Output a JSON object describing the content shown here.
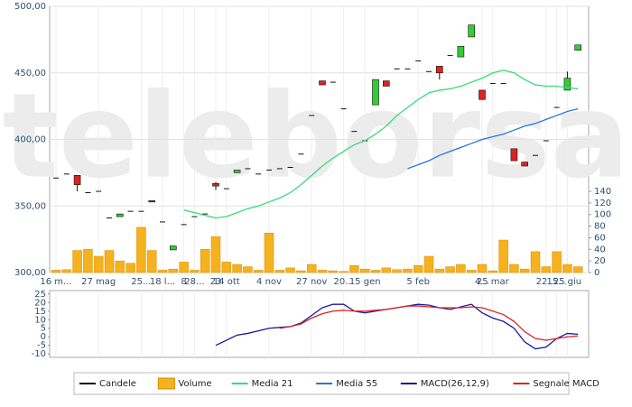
{
  "chart_data": {
    "type": "candlestick",
    "watermark": "teleborsa",
    "categories": [
      "16 m...",
      null,
      null,
      null,
      "27 mag",
      null,
      null,
      null,
      "25...",
      null,
      "18 l...",
      null,
      "8",
      "28...",
      null,
      "23",
      "14 ott",
      null,
      null,
      null,
      "4 nov",
      null,
      null,
      null,
      "27 nov",
      null,
      null,
      "20...",
      null,
      "15 gen",
      null,
      null,
      null,
      null,
      "5 feb",
      null,
      null,
      null,
      null,
      null,
      "4...",
      "25 mar",
      null,
      null,
      null,
      null,
      "22...",
      "15...",
      "25 giu",
      null
    ],
    "ylim": [
      300,
      500
    ],
    "yticks": [
      {
        "value": 300,
        "label": "300,00"
      },
      {
        "value": 350,
        "label": "350,00"
      },
      {
        "value": 400,
        "label": "400,00"
      },
      {
        "value": 450,
        "label": "450,00"
      },
      {
        "value": 500,
        "label": "500,00"
      }
    ],
    "y2lim": [
      0,
      459
    ],
    "y2ticks": [
      0,
      20,
      40,
      60,
      80,
      100,
      120,
      140
    ],
    "macd_ylim": [
      -12,
      27
    ],
    "macd_yticks": [
      25,
      20,
      15,
      10,
      5,
      0,
      -5,
      -10
    ],
    "grid": true,
    "series": [
      {
        "name": "Candele",
        "color": "#111111",
        "up_color": "#33cc33",
        "down_color": "#dd2222",
        "open": [
          371,
          374,
          373,
          360,
          361,
          341,
          342,
          346,
          346,
          354,
          338,
          317,
          336,
          342,
          344,
          367,
          363,
          375,
          378,
          374,
          377,
          378,
          379,
          389,
          418,
          444,
          443,
          423,
          406,
          399,
          426,
          444,
          453,
          453,
          459,
          451,
          455,
          463,
          462,
          477,
          437,
          442,
          442,
          393,
          383,
          388,
          399,
          424,
          437,
          467
        ],
        "high": [
          371,
          374,
          373,
          360,
          361,
          341,
          344,
          346,
          346,
          354,
          338,
          320,
          336,
          342,
          344,
          368,
          363,
          377,
          378,
          374,
          377,
          378,
          379,
          389,
          418,
          444,
          443,
          423,
          406,
          399,
          445,
          444,
          453,
          453,
          459,
          451,
          455,
          463,
          470,
          486,
          437,
          442,
          442,
          393,
          383,
          388,
          399,
          424,
          451,
          471
        ],
        "low": [
          371,
          374,
          361,
          360,
          361,
          341,
          342,
          346,
          346,
          353,
          338,
          317,
          336,
          342,
          344,
          362,
          363,
          375,
          378,
          374,
          377,
          378,
          379,
          389,
          418,
          441,
          443,
          423,
          406,
          399,
          426,
          440,
          453,
          453,
          459,
          451,
          445,
          463,
          462,
          477,
          430,
          442,
          442,
          384,
          380,
          388,
          399,
          424,
          437,
          467
        ],
        "close": [
          371,
          374,
          366,
          360,
          361,
          341,
          344,
          346,
          346,
          353,
          338,
          320,
          336,
          342,
          344,
          365,
          363,
          377,
          378,
          374,
          377,
          378,
          379,
          389,
          418,
          441,
          443,
          423,
          406,
          399,
          445,
          440,
          453,
          453,
          459,
          451,
          450,
          463,
          470,
          486,
          430,
          442,
          442,
          384,
          380,
          388,
          399,
          424,
          446,
          471
        ]
      },
      {
        "name": "Volume",
        "color": "#f5b21e",
        "axis": "y2",
        "values": [
          4,
          5,
          38,
          40,
          28,
          38,
          20,
          16,
          78,
          38,
          4,
          6,
          18,
          4,
          40,
          62,
          18,
          14,
          10,
          4,
          68,
          4,
          8,
          3,
          14,
          4,
          3,
          2,
          12,
          6,
          4,
          8,
          5,
          6,
          12,
          28,
          6,
          10,
          14,
          4,
          14,
          3,
          56,
          14,
          6,
          36,
          10,
          36,
          14,
          10
        ]
      },
      {
        "name": "Media 21",
        "color": "#33dd77",
        "values": [
          null,
          null,
          null,
          null,
          null,
          null,
          null,
          null,
          null,
          null,
          null,
          null,
          347,
          345,
          343,
          341,
          342,
          345,
          348,
          350,
          353,
          356,
          360,
          366,
          373,
          380,
          386,
          391,
          396,
          399,
          404,
          410,
          418,
          424,
          430,
          435,
          437,
          438,
          440,
          443,
          446,
          450,
          452,
          450,
          445,
          441,
          440,
          440,
          439,
          438
        ]
      },
      {
        "name": "Media 55",
        "color": "#2277dd",
        "values": [
          null,
          null,
          null,
          null,
          null,
          null,
          null,
          null,
          null,
          null,
          null,
          null,
          null,
          null,
          null,
          null,
          null,
          null,
          null,
          null,
          null,
          null,
          null,
          null,
          null,
          null,
          null,
          null,
          null,
          null,
          null,
          null,
          null,
          378,
          381,
          384,
          388,
          391,
          394,
          397,
          400,
          402,
          404,
          407,
          410,
          412,
          415,
          418,
          421,
          423
        ]
      },
      {
        "name": "MACD(26,12,9)",
        "color": "#1a1aa0",
        "axis": "macd",
        "values": [
          null,
          null,
          null,
          null,
          null,
          null,
          null,
          null,
          null,
          null,
          null,
          null,
          null,
          null,
          null,
          -5,
          -2,
          1,
          2,
          3.5,
          5,
          5.5,
          6,
          8,
          12.5,
          17,
          19,
          19,
          15,
          14,
          15,
          16,
          17,
          18,
          19,
          18.5,
          17,
          16,
          17.5,
          19,
          14,
          11,
          9,
          5,
          -3,
          -7,
          -6,
          -1,
          2,
          1.5
        ]
      },
      {
        "name": "Segnale MACD",
        "color": "#dd2222",
        "axis": "macd",
        "values": [
          null,
          null,
          null,
          null,
          null,
          null,
          null,
          null,
          null,
          null,
          null,
          null,
          null,
          null,
          null,
          null,
          null,
          null,
          null,
          null,
          null,
          5,
          6,
          7.5,
          11,
          13.5,
          15,
          15.5,
          15,
          15,
          15.5,
          16,
          17,
          18,
          18,
          17.5,
          17,
          17,
          17,
          17.5,
          17,
          15,
          13,
          9,
          3,
          -1,
          -2,
          -1,
          0,
          0.5
        ]
      }
    ]
  }
}
